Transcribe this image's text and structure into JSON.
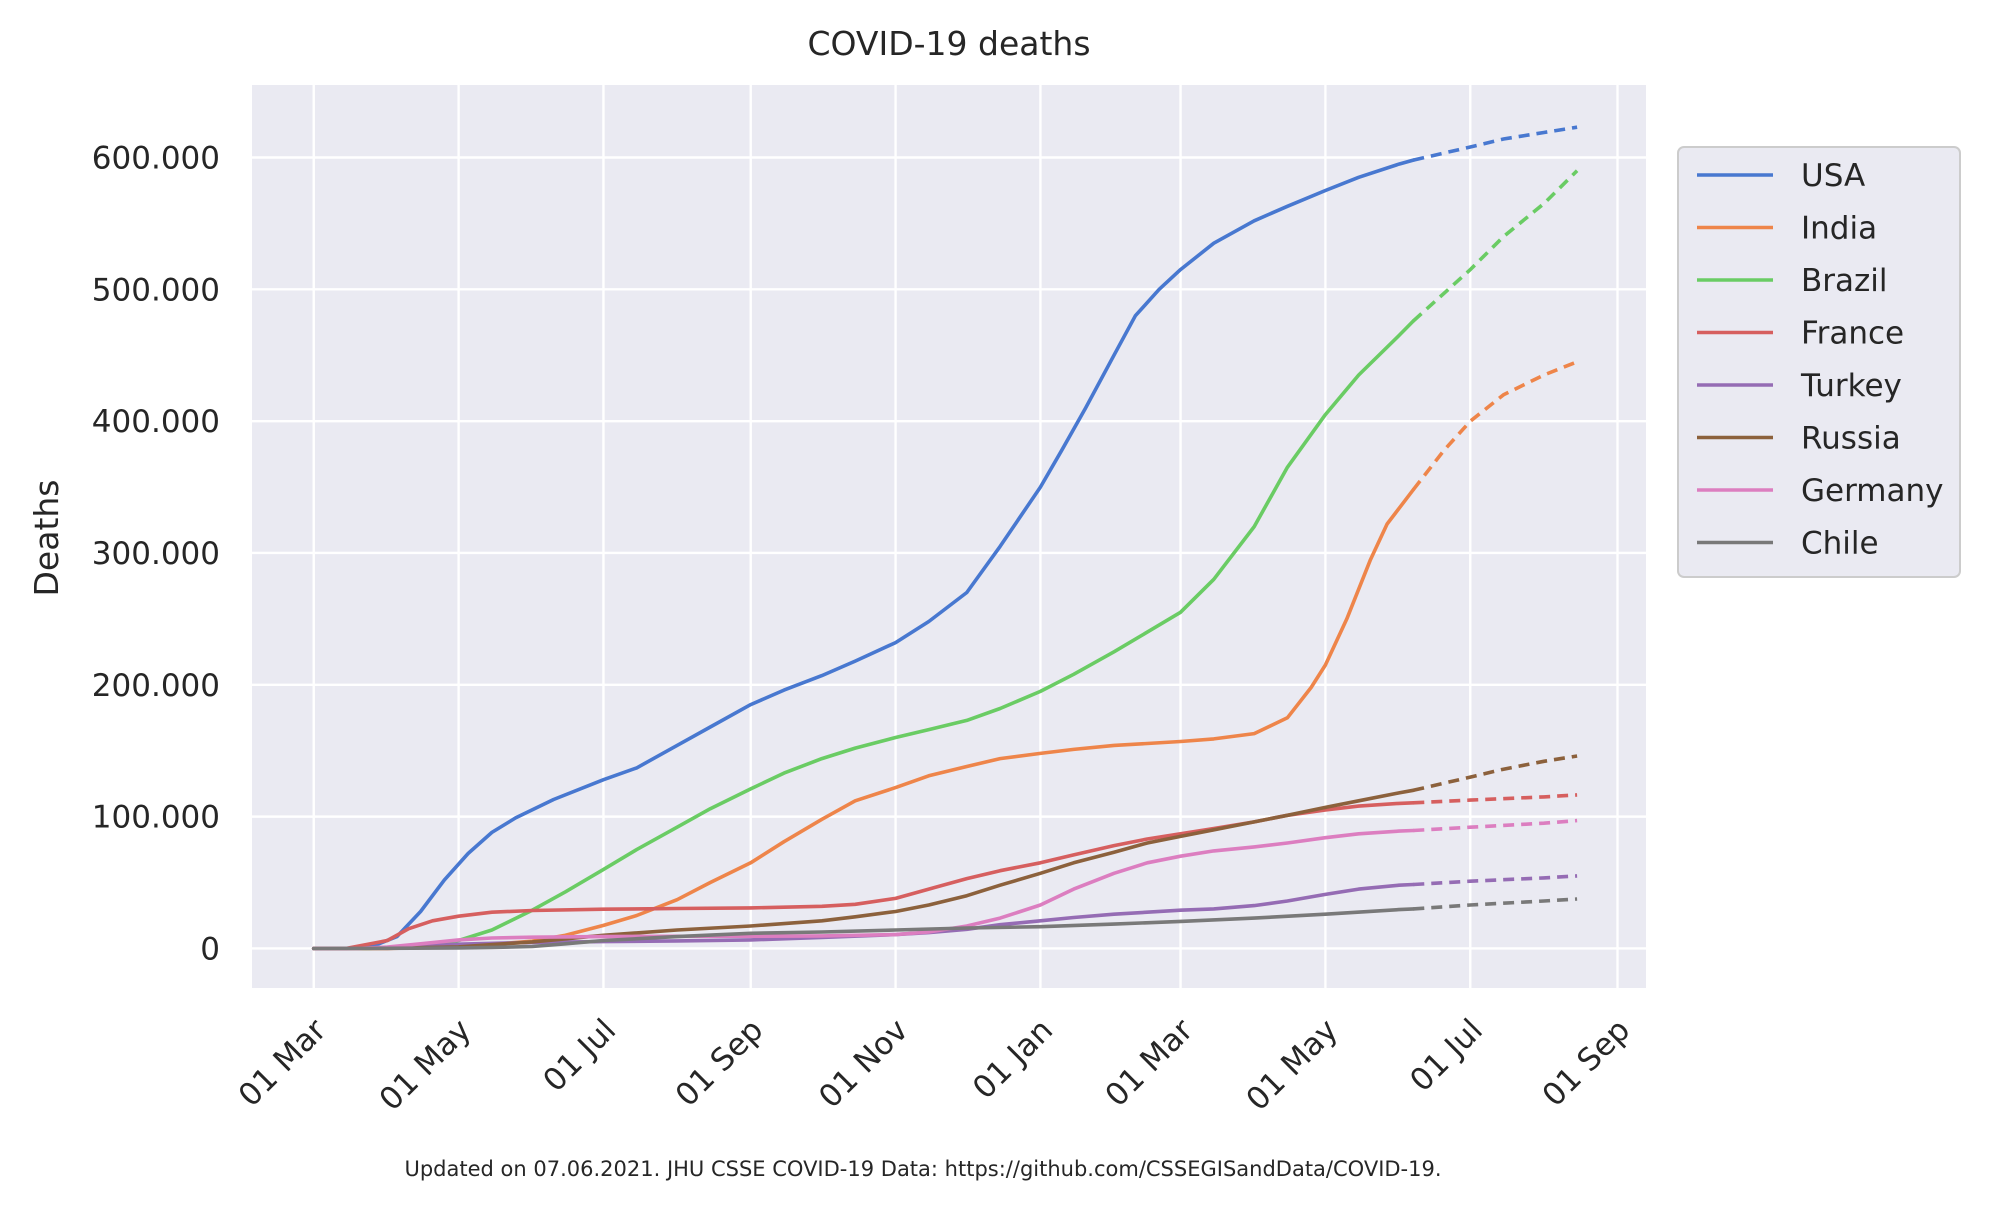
{
  "chart_data": {
    "type": "line",
    "title": "COVID-19 deaths",
    "xlabel": "",
    "ylabel": "Deaths",
    "x_ticks": [
      "01 Mar",
      "01 May",
      "01 Jul",
      "01 Sep",
      "01 Nov",
      "01 Jan",
      "01 Mar",
      "01 May",
      "01 Jul",
      "01 Sep"
    ],
    "x_tick_dates": [
      "2020-03-01",
      "2020-05-01",
      "2020-07-01",
      "2020-09-01",
      "2020-11-01",
      "2021-01-01",
      "2021-03-01",
      "2021-05-01",
      "2021-07-01",
      "2021-09-01"
    ],
    "y_ticks": [
      "0",
      "100.000",
      "200.000",
      "300.000",
      "400.000",
      "500.000",
      "600.000"
    ],
    "y_tick_values": [
      0,
      100000,
      200000,
      300000,
      400000,
      500000,
      600000
    ],
    "xlim": [
      "2020-02-04",
      "2021-09-13"
    ],
    "ylim": [
      -30000,
      655000
    ],
    "grid": true,
    "legend_position": "right",
    "solid_until": "2021-06-07",
    "forecast_style": "dashed",
    "series": [
      {
        "name": "USA",
        "color": "#4878d0",
        "points": [
          [
            "2020-03-01",
            0
          ],
          [
            "2020-03-15",
            60
          ],
          [
            "2020-03-25",
            1000
          ],
          [
            "2020-04-05",
            9000
          ],
          [
            "2020-04-15",
            28000
          ],
          [
            "2020-04-25",
            52000
          ],
          [
            "2020-05-05",
            72000
          ],
          [
            "2020-05-15",
            88000
          ],
          [
            "2020-05-25",
            99000
          ],
          [
            "2020-06-10",
            113000
          ],
          [
            "2020-07-01",
            128000
          ],
          [
            "2020-07-15",
            137000
          ],
          [
            "2020-08-01",
            154000
          ],
          [
            "2020-08-15",
            168000
          ],
          [
            "2020-09-01",
            185000
          ],
          [
            "2020-09-15",
            196000
          ],
          [
            "2020-10-01",
            207000
          ],
          [
            "2020-10-15",
            218000
          ],
          [
            "2020-11-01",
            232000
          ],
          [
            "2020-11-15",
            248000
          ],
          [
            "2020-12-01",
            270000
          ],
          [
            "2020-12-15",
            305000
          ],
          [
            "2021-01-01",
            350000
          ],
          [
            "2021-01-10",
            378000
          ],
          [
            "2021-01-20",
            410000
          ],
          [
            "2021-02-01",
            450000
          ],
          [
            "2021-02-10",
            480000
          ],
          [
            "2021-02-20",
            500000
          ],
          [
            "2021-03-01",
            515000
          ],
          [
            "2021-03-15",
            535000
          ],
          [
            "2021-04-01",
            552000
          ],
          [
            "2021-04-15",
            563000
          ],
          [
            "2021-05-01",
            575000
          ],
          [
            "2021-05-15",
            585000
          ],
          [
            "2021-06-01",
            595000
          ],
          [
            "2021-06-07",
            598000
          ],
          [
            "2021-07-01",
            608000
          ],
          [
            "2021-07-15",
            614000
          ],
          [
            "2021-08-01",
            619000
          ],
          [
            "2021-08-15",
            623000
          ]
        ]
      },
      {
        "name": "India",
        "color": "#ee854a",
        "points": [
          [
            "2020-03-01",
            0
          ],
          [
            "2020-04-01",
            40
          ],
          [
            "2020-05-01",
            1100
          ],
          [
            "2020-06-01",
            5500
          ],
          [
            "2020-06-15",
            10000
          ],
          [
            "2020-07-01",
            17500
          ],
          [
            "2020-07-15",
            25000
          ],
          [
            "2020-08-01",
            37000
          ],
          [
            "2020-08-15",
            50000
          ],
          [
            "2020-09-01",
            65000
          ],
          [
            "2020-09-15",
            81000
          ],
          [
            "2020-10-01",
            98000
          ],
          [
            "2020-10-15",
            112000
          ],
          [
            "2020-11-01",
            122000
          ],
          [
            "2020-11-15",
            131000
          ],
          [
            "2020-12-01",
            138000
          ],
          [
            "2020-12-15",
            144000
          ],
          [
            "2021-01-01",
            148000
          ],
          [
            "2021-01-15",
            151000
          ],
          [
            "2021-02-01",
            154000
          ],
          [
            "2021-02-15",
            155500
          ],
          [
            "2021-03-01",
            157000
          ],
          [
            "2021-03-15",
            159000
          ],
          [
            "2021-04-01",
            163000
          ],
          [
            "2021-04-15",
            175000
          ],
          [
            "2021-04-25",
            198000
          ],
          [
            "2021-05-01",
            215000
          ],
          [
            "2021-05-10",
            250000
          ],
          [
            "2021-05-20",
            295000
          ],
          [
            "2021-05-27",
            322000
          ],
          [
            "2021-06-07",
            348000
          ],
          [
            "2021-06-20",
            378000
          ],
          [
            "2021-07-01",
            400000
          ],
          [
            "2021-07-15",
            420000
          ],
          [
            "2021-08-01",
            435000
          ],
          [
            "2021-08-15",
            445000
          ]
        ]
      },
      {
        "name": "Brazil",
        "color": "#6acc64",
        "points": [
          [
            "2020-03-01",
            0
          ],
          [
            "2020-03-25",
            100
          ],
          [
            "2020-04-15",
            1900
          ],
          [
            "2020-05-01",
            6000
          ],
          [
            "2020-05-15",
            14000
          ],
          [
            "2020-06-01",
            29000
          ],
          [
            "2020-06-15",
            43000
          ],
          [
            "2020-07-01",
            60000
          ],
          [
            "2020-07-15",
            75000
          ],
          [
            "2020-08-01",
            92000
          ],
          [
            "2020-08-15",
            106000
          ],
          [
            "2020-09-01",
            121000
          ],
          [
            "2020-09-15",
            133000
          ],
          [
            "2020-10-01",
            144000
          ],
          [
            "2020-10-15",
            152000
          ],
          [
            "2020-11-01",
            160000
          ],
          [
            "2020-11-15",
            166000
          ],
          [
            "2020-12-01",
            173000
          ],
          [
            "2020-12-15",
            182000
          ],
          [
            "2021-01-01",
            195000
          ],
          [
            "2021-01-15",
            208000
          ],
          [
            "2021-02-01",
            225000
          ],
          [
            "2021-02-15",
            240000
          ],
          [
            "2021-03-01",
            255000
          ],
          [
            "2021-03-15",
            280000
          ],
          [
            "2021-04-01",
            320000
          ],
          [
            "2021-04-15",
            365000
          ],
          [
            "2021-05-01",
            405000
          ],
          [
            "2021-05-15",
            435000
          ],
          [
            "2021-06-01",
            465000
          ],
          [
            "2021-06-07",
            476000
          ],
          [
            "2021-07-01",
            515000
          ],
          [
            "2021-07-15",
            540000
          ],
          [
            "2021-08-01",
            565000
          ],
          [
            "2021-08-15",
            590000
          ]
        ]
      },
      {
        "name": "France",
        "color": "#d65f5f",
        "points": [
          [
            "2020-03-01",
            0
          ],
          [
            "2020-03-15",
            100
          ],
          [
            "2020-04-01",
            6000
          ],
          [
            "2020-04-10",
            15000
          ],
          [
            "2020-04-20",
            21000
          ],
          [
            "2020-05-01",
            24500
          ],
          [
            "2020-05-15",
            27500
          ],
          [
            "2020-06-01",
            28800
          ],
          [
            "2020-07-01",
            29800
          ],
          [
            "2020-08-01",
            30300
          ],
          [
            "2020-09-01",
            30800
          ],
          [
            "2020-10-01",
            32000
          ],
          [
            "2020-10-15",
            33500
          ],
          [
            "2020-11-01",
            38000
          ],
          [
            "2020-11-15",
            45000
          ],
          [
            "2020-12-01",
            53000
          ],
          [
            "2020-12-15",
            59000
          ],
          [
            "2021-01-01",
            65000
          ],
          [
            "2021-01-15",
            71000
          ],
          [
            "2021-02-01",
            78000
          ],
          [
            "2021-02-15",
            83000
          ],
          [
            "2021-03-01",
            87000
          ],
          [
            "2021-03-15",
            91000
          ],
          [
            "2021-04-01",
            96000
          ],
          [
            "2021-04-15",
            101000
          ],
          [
            "2021-05-01",
            105000
          ],
          [
            "2021-05-15",
            108000
          ],
          [
            "2021-06-01",
            110000
          ],
          [
            "2021-06-07",
            110500
          ],
          [
            "2021-07-01",
            112500
          ],
          [
            "2021-08-01",
            115000
          ],
          [
            "2021-08-15",
            116500
          ]
        ]
      },
      {
        "name": "Turkey",
        "color": "#956cb4",
        "points": [
          [
            "2020-03-01",
            0
          ],
          [
            "2020-04-01",
            300
          ],
          [
            "2020-05-01",
            3200
          ],
          [
            "2020-06-01",
            4600
          ],
          [
            "2020-07-01",
            5200
          ],
          [
            "2020-08-01",
            5700
          ],
          [
            "2020-09-01",
            6500
          ],
          [
            "2020-10-01",
            8300
          ],
          [
            "2020-11-01",
            10500
          ],
          [
            "2020-11-15",
            12000
          ],
          [
            "2020-12-01",
            14500
          ],
          [
            "2020-12-15",
            18000
          ],
          [
            "2021-01-01",
            21000
          ],
          [
            "2021-01-15",
            23500
          ],
          [
            "2021-02-01",
            26000
          ],
          [
            "2021-03-01",
            29000
          ],
          [
            "2021-03-15",
            30000
          ],
          [
            "2021-04-01",
            32500
          ],
          [
            "2021-04-15",
            36000
          ],
          [
            "2021-05-01",
            41000
          ],
          [
            "2021-05-15",
            45000
          ],
          [
            "2021-06-01",
            48000
          ],
          [
            "2021-06-07",
            48500
          ],
          [
            "2021-07-01",
            51000
          ],
          [
            "2021-08-01",
            53500
          ],
          [
            "2021-08-15",
            55000
          ]
        ]
      },
      {
        "name": "Russia",
        "color": "#8c613c",
        "points": [
          [
            "2020-03-01",
            0
          ],
          [
            "2020-04-01",
            100
          ],
          [
            "2020-05-01",
            1200
          ],
          [
            "2020-06-01",
            5000
          ],
          [
            "2020-07-01",
            10000
          ],
          [
            "2020-08-01",
            14000
          ],
          [
            "2020-09-01",
            17000
          ],
          [
            "2020-10-01",
            21000
          ],
          [
            "2020-10-15",
            24000
          ],
          [
            "2020-11-01",
            28000
          ],
          [
            "2020-11-15",
            33000
          ],
          [
            "2020-12-01",
            40000
          ],
          [
            "2020-12-15",
            48000
          ],
          [
            "2021-01-01",
            57000
          ],
          [
            "2021-01-15",
            65000
          ],
          [
            "2021-02-01",
            73000
          ],
          [
            "2021-02-15",
            80000
          ],
          [
            "2021-03-01",
            85000
          ],
          [
            "2021-03-15",
            90000
          ],
          [
            "2021-04-01",
            96000
          ],
          [
            "2021-04-15",
            101000
          ],
          [
            "2021-05-01",
            107000
          ],
          [
            "2021-05-15",
            112000
          ],
          [
            "2021-06-01",
            118000
          ],
          [
            "2021-06-07",
            120000
          ],
          [
            "2021-07-01",
            130000
          ],
          [
            "2021-07-15",
            136000
          ],
          [
            "2021-08-01",
            142000
          ],
          [
            "2021-08-15",
            146000
          ]
        ]
      },
      {
        "name": "Germany",
        "color": "#dc7ec0",
        "points": [
          [
            "2020-03-01",
            0
          ],
          [
            "2020-03-20",
            50
          ],
          [
            "2020-04-01",
            1000
          ],
          [
            "2020-04-15",
            3500
          ],
          [
            "2020-05-01",
            6500
          ],
          [
            "2020-05-15",
            7900
          ],
          [
            "2020-06-01",
            8500
          ],
          [
            "2020-07-01",
            9000
          ],
          [
            "2020-08-01",
            9200
          ],
          [
            "2020-09-01",
            9300
          ],
          [
            "2020-10-01",
            9500
          ],
          [
            "2020-11-01",
            10500
          ],
          [
            "2020-11-15",
            12500
          ],
          [
            "2020-12-01",
            17000
          ],
          [
            "2020-12-15",
            23000
          ],
          [
            "2021-01-01",
            33000
          ],
          [
            "2021-01-15",
            45000
          ],
          [
            "2021-02-01",
            57000
          ],
          [
            "2021-02-15",
            65000
          ],
          [
            "2021-03-01",
            70000
          ],
          [
            "2021-03-15",
            74000
          ],
          [
            "2021-04-01",
            77000
          ],
          [
            "2021-04-15",
            80000
          ],
          [
            "2021-05-01",
            84000
          ],
          [
            "2021-05-15",
            87000
          ],
          [
            "2021-06-01",
            89000
          ],
          [
            "2021-06-07",
            89500
          ],
          [
            "2021-07-01",
            92000
          ],
          [
            "2021-08-01",
            95000
          ],
          [
            "2021-08-15",
            97000
          ]
        ]
      },
      {
        "name": "Chile",
        "color": "#797979",
        "points": [
          [
            "2020-03-01",
            0
          ],
          [
            "2020-04-01",
            100
          ],
          [
            "2020-05-01",
            400
          ],
          [
            "2020-05-15",
            800
          ],
          [
            "2020-06-01",
            1500
          ],
          [
            "2020-06-15",
            3500
          ],
          [
            "2020-07-01",
            6000
          ],
          [
            "2020-08-01",
            9000
          ],
          [
            "2020-09-01",
            11500
          ],
          [
            "2020-10-01",
            12500
          ],
          [
            "2020-11-01",
            14000
          ],
          [
            "2020-12-01",
            15500
          ],
          [
            "2021-01-01",
            16500
          ],
          [
            "2021-02-01",
            18500
          ],
          [
            "2021-03-01",
            20500
          ],
          [
            "2021-04-01",
            23000
          ],
          [
            "2021-05-01",
            26000
          ],
          [
            "2021-06-01",
            29500
          ],
          [
            "2021-06-07",
            30000
          ],
          [
            "2021-07-01",
            33000
          ],
          [
            "2021-08-01",
            36000
          ],
          [
            "2021-08-15",
            37500
          ]
        ]
      }
    ]
  },
  "footnote": "Updated on 07.06.2021. JHU CSSE COVID-19 Data: https://github.com/CSSEGISandData/COVID-19."
}
